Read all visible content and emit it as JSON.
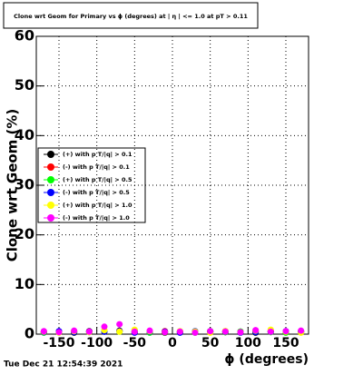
{
  "chart_data": {
    "type": "scatter",
    "title": "Clone wrt Geom for Primary vs ϕ (degrees) at | η | <= 1.0 at pT > 0.11",
    "x_label": "ϕ (degrees)",
    "y_label": "Clone wrt Geom (%)",
    "timestamp": "Tue Dec 21 12:54:39 2021",
    "xlim": [
      -180,
      180
    ],
    "ylim": [
      0,
      60
    ],
    "xticks": [
      -150,
      -100,
      -50,
      0,
      50,
      100,
      150
    ],
    "yticks": [
      0,
      10,
      20,
      30,
      40,
      50,
      60
    ],
    "grid": true,
    "legend": "left",
    "x": [
      -170,
      -150,
      -130,
      -110,
      -90,
      -70,
      -50,
      -30,
      -10,
      10,
      30,
      50,
      70,
      90,
      110,
      130,
      150,
      170
    ],
    "series": [
      {
        "name": "(+) with p T/|q| > 0.1",
        "color": "#000000",
        "values": [
          0.4,
          0.5,
          0.3,
          0.6,
          0.5,
          0.7,
          0.4,
          0.5,
          0.3,
          0.4,
          0.5,
          0.6,
          0.4,
          0.5,
          0.3,
          0.5,
          0.4,
          0.6
        ]
      },
      {
        "name": "(-) with p T/|q| > 0.1",
        "color": "#ff0000",
        "values": [
          0.5,
          0.4,
          0.6,
          0.5,
          0.7,
          0.6,
          0.5,
          0.4,
          0.6,
          0.5,
          0.4,
          0.5,
          0.6,
          0.4,
          0.5,
          0.6,
          0.5,
          0.4
        ]
      },
      {
        "name": "(+) with p T/|q| > 0.5",
        "color": "#00ff00",
        "values": [
          0.3,
          0.4,
          0.5,
          0.4,
          0.6,
          0.5,
          0.7,
          0.3,
          0.4,
          0.5,
          0.3,
          0.6,
          0.4,
          0.5,
          0.6,
          0.4,
          0.3,
          0.5
        ]
      },
      {
        "name": "(-) with p T/|q| > 0.5",
        "color": "#0000ff",
        "values": [
          0.4,
          0.6,
          0.4,
          0.5,
          0.5,
          0.6,
          0.3,
          0.5,
          0.5,
          0.3,
          0.6,
          0.4,
          0.5,
          0.3,
          0.4,
          0.5,
          0.6,
          0.4
        ]
      },
      {
        "name": "(+) with p T/|q| > 1.0",
        "color": "#ffff00",
        "values": [
          0.5,
          0.3,
          0.6,
          0.4,
          0.8,
          0.5,
          0.9,
          0.6,
          0.4,
          0.6,
          0.5,
          0.3,
          0.6,
          0.4,
          0.7,
          0.9,
          0.5,
          0.3
        ]
      },
      {
        "name": "(-) with p T/|q| > 1.0",
        "color": "#ff00ff",
        "values": [
          0.6,
          0.4,
          0.7,
          0.5,
          1.5,
          2.0,
          0.5,
          0.7,
          0.4,
          0.5,
          0.3,
          0.6,
          0.5,
          0.4,
          0.8,
          0.5,
          0.6,
          0.7
        ]
      }
    ]
  }
}
